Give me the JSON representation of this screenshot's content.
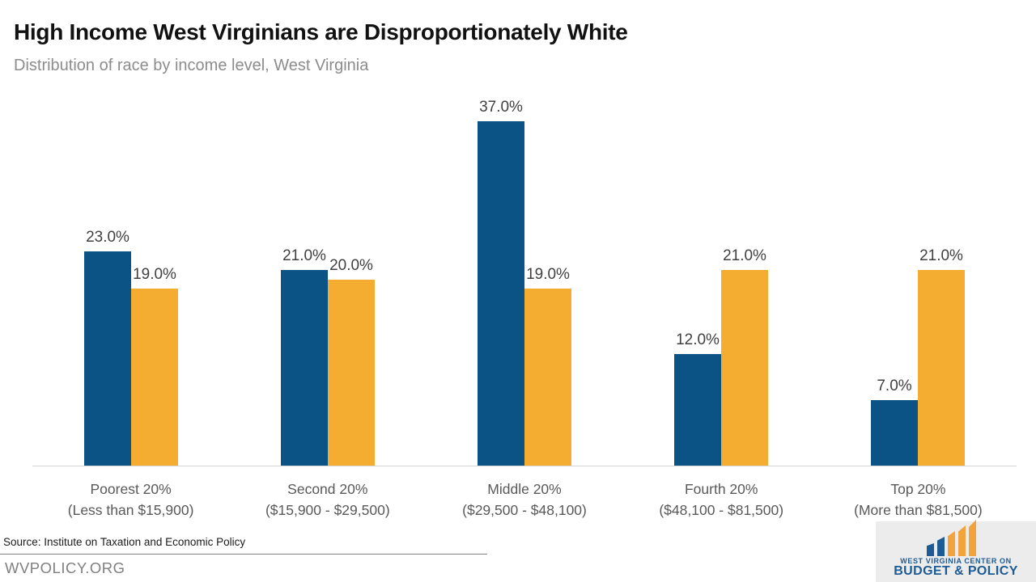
{
  "colors": {
    "bar_blue": "#0b5384",
    "bar_gold": "#f5ad31",
    "logo_blue": "#1d5b94",
    "logo_gold": "#f2a33c"
  },
  "header": {
    "title": "High Income West Virginians are Disproportionately White",
    "subtitle": "Distribution of race by income level, West Virginia"
  },
  "chart_data": {
    "type": "bar",
    "title": "High Income West Virginians are Disproportionately White",
    "subtitle": "Distribution of race by income level, West Virginia",
    "xlabel": "",
    "ylabel": "",
    "ylim": [
      0,
      40
    ],
    "grid": false,
    "legend": "none",
    "categories": [
      {
        "line1": "Poorest 20%",
        "line2": "(Less than $15,900)"
      },
      {
        "line1": "Second 20%",
        "line2": "($15,900 - $29,500)"
      },
      {
        "line1": "Middle 20%",
        "line2": "($29,500 - $48,100)"
      },
      {
        "line1": "Fourth 20%",
        "line2": "($48,100 - $81,500)"
      },
      {
        "line1": "Top 20%",
        "line2": "(More than $81,500)"
      }
    ],
    "series": [
      {
        "name": "blue-series",
        "color": "#0b5384",
        "values": [
          23.0,
          21.0,
          37.0,
          12.0,
          7.0
        ],
        "labels": [
          "23.0%",
          "21.0%",
          "37.0%",
          "12.0%",
          "7.0%"
        ]
      },
      {
        "name": "gold-series",
        "color": "#f5ad31",
        "values": [
          19.0,
          20.0,
          19.0,
          21.0,
          21.0
        ],
        "labels": [
          "19.0%",
          "20.0%",
          "19.0%",
          "21.0%",
          "21.0%"
        ]
      }
    ]
  },
  "footer": {
    "source": "Source: Institute on Taxation and Economic Policy",
    "site": "WVPOLICY.ORG"
  },
  "logo": {
    "line1": "WEST VIRGINIA CENTER ON",
    "line2": "BUDGET & POLICY"
  }
}
